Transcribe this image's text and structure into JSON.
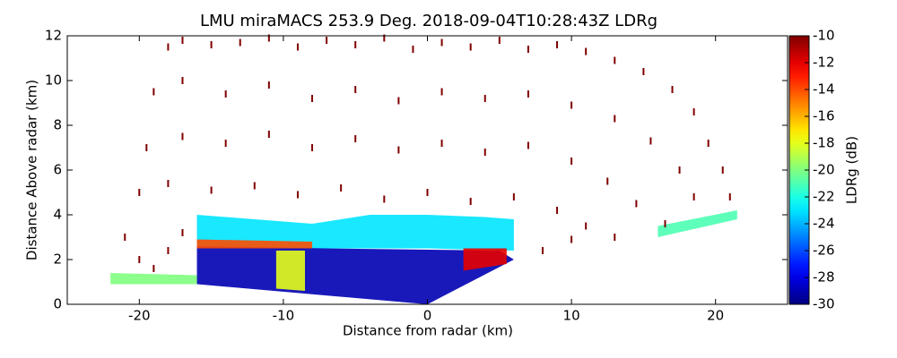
{
  "chart_data": {
    "type": "rhi",
    "title": "LMU miraMACS 253.9 Deg. 2018-09-04T10:28:43Z  LDRg",
    "xlabel": "Distance from radar (km)",
    "ylabel": "Distance Above radar  (km)",
    "xlim": [
      -25,
      25
    ],
    "ylim": [
      0,
      12
    ],
    "xticks": [
      -20,
      -10,
      0,
      10,
      20
    ],
    "yticks": [
      0,
      2,
      4,
      6,
      8,
      10,
      12
    ],
    "colorbar": {
      "label": "LDRg (dB)",
      "clim": [
        -30,
        -10
      ],
      "ticks": [
        -30,
        -28,
        -26,
        -24,
        -22,
        -20,
        -18,
        -16,
        -14,
        -12,
        -10
      ],
      "colormap": "jet"
    },
    "regions": [
      {
        "value": -23,
        "x": [
          -16,
          -16,
          -12,
          -8,
          -4,
          0,
          4,
          6,
          6,
          0,
          -8,
          -16
        ],
        "y": [
          2.6,
          4.0,
          3.8,
          3.6,
          4.0,
          4.0,
          3.9,
          3.8,
          2.4,
          2.5,
          2.5,
          2.6
        ]
      },
      {
        "value": -29,
        "x": [
          -16,
          -16,
          -7,
          5,
          6,
          0,
          -16
        ],
        "y": [
          0.9,
          2.6,
          2.5,
          2.4,
          2.0,
          0,
          0.9
        ]
      },
      {
        "value": -18,
        "x": [
          -10.5,
          -10.5,
          -8.5,
          -8.5
        ],
        "y": [
          0.7,
          2.4,
          2.4,
          0.6
        ]
      },
      {
        "value": -12,
        "x": [
          2.5,
          2.5,
          5.5,
          5.5
        ],
        "y": [
          1.5,
          2.5,
          2.5,
          1.8
        ]
      },
      {
        "value": -20,
        "x": [
          -22,
          -22,
          -16,
          -16
        ],
        "y": [
          0.9,
          1.4,
          1.3,
          0.9
        ]
      },
      {
        "value": -14,
        "x": [
          -16,
          -16,
          -8,
          -8
        ],
        "y": [
          2.5,
          2.9,
          2.8,
          2.5
        ]
      },
      {
        "value": -21,
        "x": [
          16,
          16,
          21.5,
          21.5
        ],
        "y": [
          3.0,
          3.5,
          4.2,
          3.8
        ]
      }
    ],
    "speckles": {
      "value": -10,
      "x": [
        -18,
        -17,
        -15,
        -13,
        -11,
        -9,
        -7,
        -5,
        -3,
        -1,
        1,
        3,
        5,
        7,
        9,
        11,
        13,
        15,
        17,
        18.5,
        19.5,
        20.5,
        21,
        -19,
        -17,
        -14,
        -11,
        -8,
        -5,
        -2,
        1,
        4,
        7,
        10,
        13,
        15.5,
        17.5,
        18.5,
        -19.5,
        -17,
        -14,
        -11,
        -8,
        -5,
        -2,
        1,
        4,
        7,
        10,
        12.5,
        14.5,
        16.5,
        -20,
        -18,
        -15,
        -12,
        -9,
        -6,
        -3,
        0,
        3,
        6,
        9,
        11,
        13,
        -21,
        -20,
        -19,
        -18,
        -17,
        8,
        10
      ],
      "y": [
        11.5,
        11.8,
        11.6,
        11.7,
        11.9,
        11.5,
        11.8,
        11.6,
        11.9,
        11.4,
        11.7,
        11.5,
        11.8,
        11.4,
        11.6,
        11.3,
        10.9,
        10.4,
        9.6,
        8.6,
        7.2,
        6,
        4.8,
        9.5,
        10,
        9.4,
        9.8,
        9.2,
        9.6,
        9.1,
        9.5,
        9.2,
        9.4,
        8.9,
        8.3,
        7.3,
        6,
        4.8,
        7,
        7.5,
        7.2,
        7.6,
        7,
        7.4,
        6.9,
        7.2,
        6.8,
        7.1,
        6.4,
        5.5,
        4.5,
        3.6,
        5,
        5.4,
        5.1,
        5.3,
        4.9,
        5.2,
        4.7,
        5,
        4.6,
        4.8,
        4.2,
        3.5,
        3,
        3,
        2,
        1.6,
        2.4,
        3.2,
        2.4,
        2.9
      ]
    }
  }
}
